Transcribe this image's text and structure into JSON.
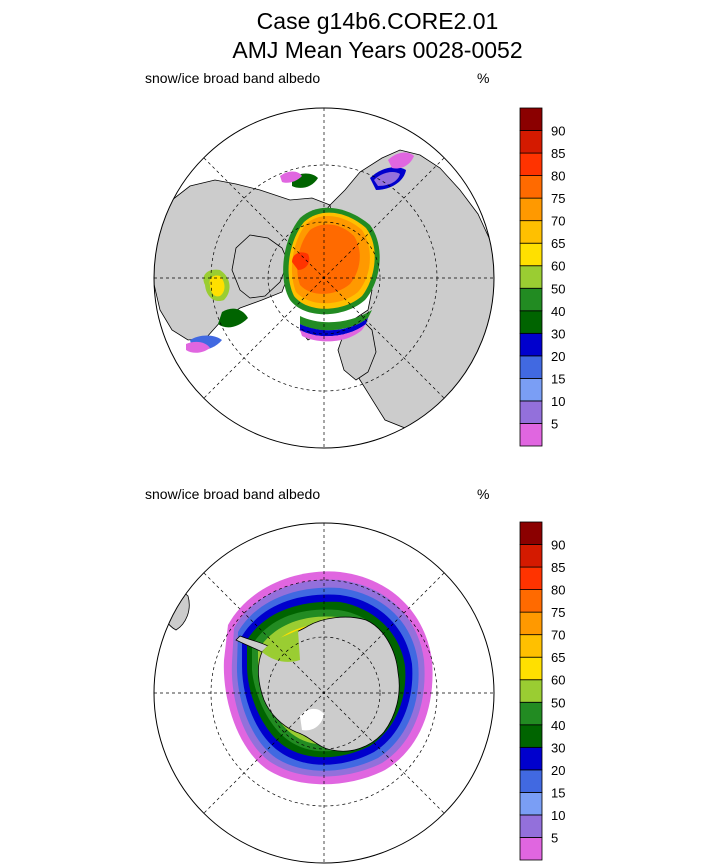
{
  "title_line1": "Case g14b6.CORE2.01",
  "title_line2": "AMJ Mean   Years 0028-0052",
  "colorbar": {
    "labels": [
      "5",
      "10",
      "15",
      "20",
      "30",
      "40",
      "50",
      "60",
      "65",
      "70",
      "75",
      "80",
      "85",
      "90"
    ],
    "colors": [
      "#e066e0",
      "#9370db",
      "#7a9ef5",
      "#4169e1",
      "#0000cd",
      "#006400",
      "#228b22",
      "#9acd32",
      "#ffe000",
      "#ffc000",
      "#ff9900",
      "#ff6a00",
      "#ff3300",
      "#d41a00",
      "#8b0000"
    ]
  },
  "chart_data": [
    {
      "type": "heatmap",
      "hemisphere": "north",
      "projection": "polar stereographic",
      "variable_label": "snow/ice broad band albedo",
      "units_label": "%",
      "levels": [
        5,
        10,
        15,
        20,
        30,
        40,
        50,
        60,
        65,
        70,
        75,
        80,
        85,
        90
      ],
      "summary": "Arctic Ocean mostly 75-80%, local 80-85% near pole; marginal seas (Hudson Bay, Baffin, Barents, Okhotsk, Bering) 30-65% with 5-20% edges"
    },
    {
      "type": "heatmap",
      "hemisphere": "south",
      "projection": "polar stereographic",
      "variable_label": "snow/ice broad band albedo",
      "units_label": "%",
      "levels": [
        5,
        10,
        15,
        20,
        30,
        40,
        50,
        60,
        65,
        70,
        75,
        80,
        85,
        90
      ],
      "summary": "Ring of sea ice around Antarctica; 50-65% near coast, 30-50% in the pack, 5-20% at the ice edge"
    }
  ]
}
